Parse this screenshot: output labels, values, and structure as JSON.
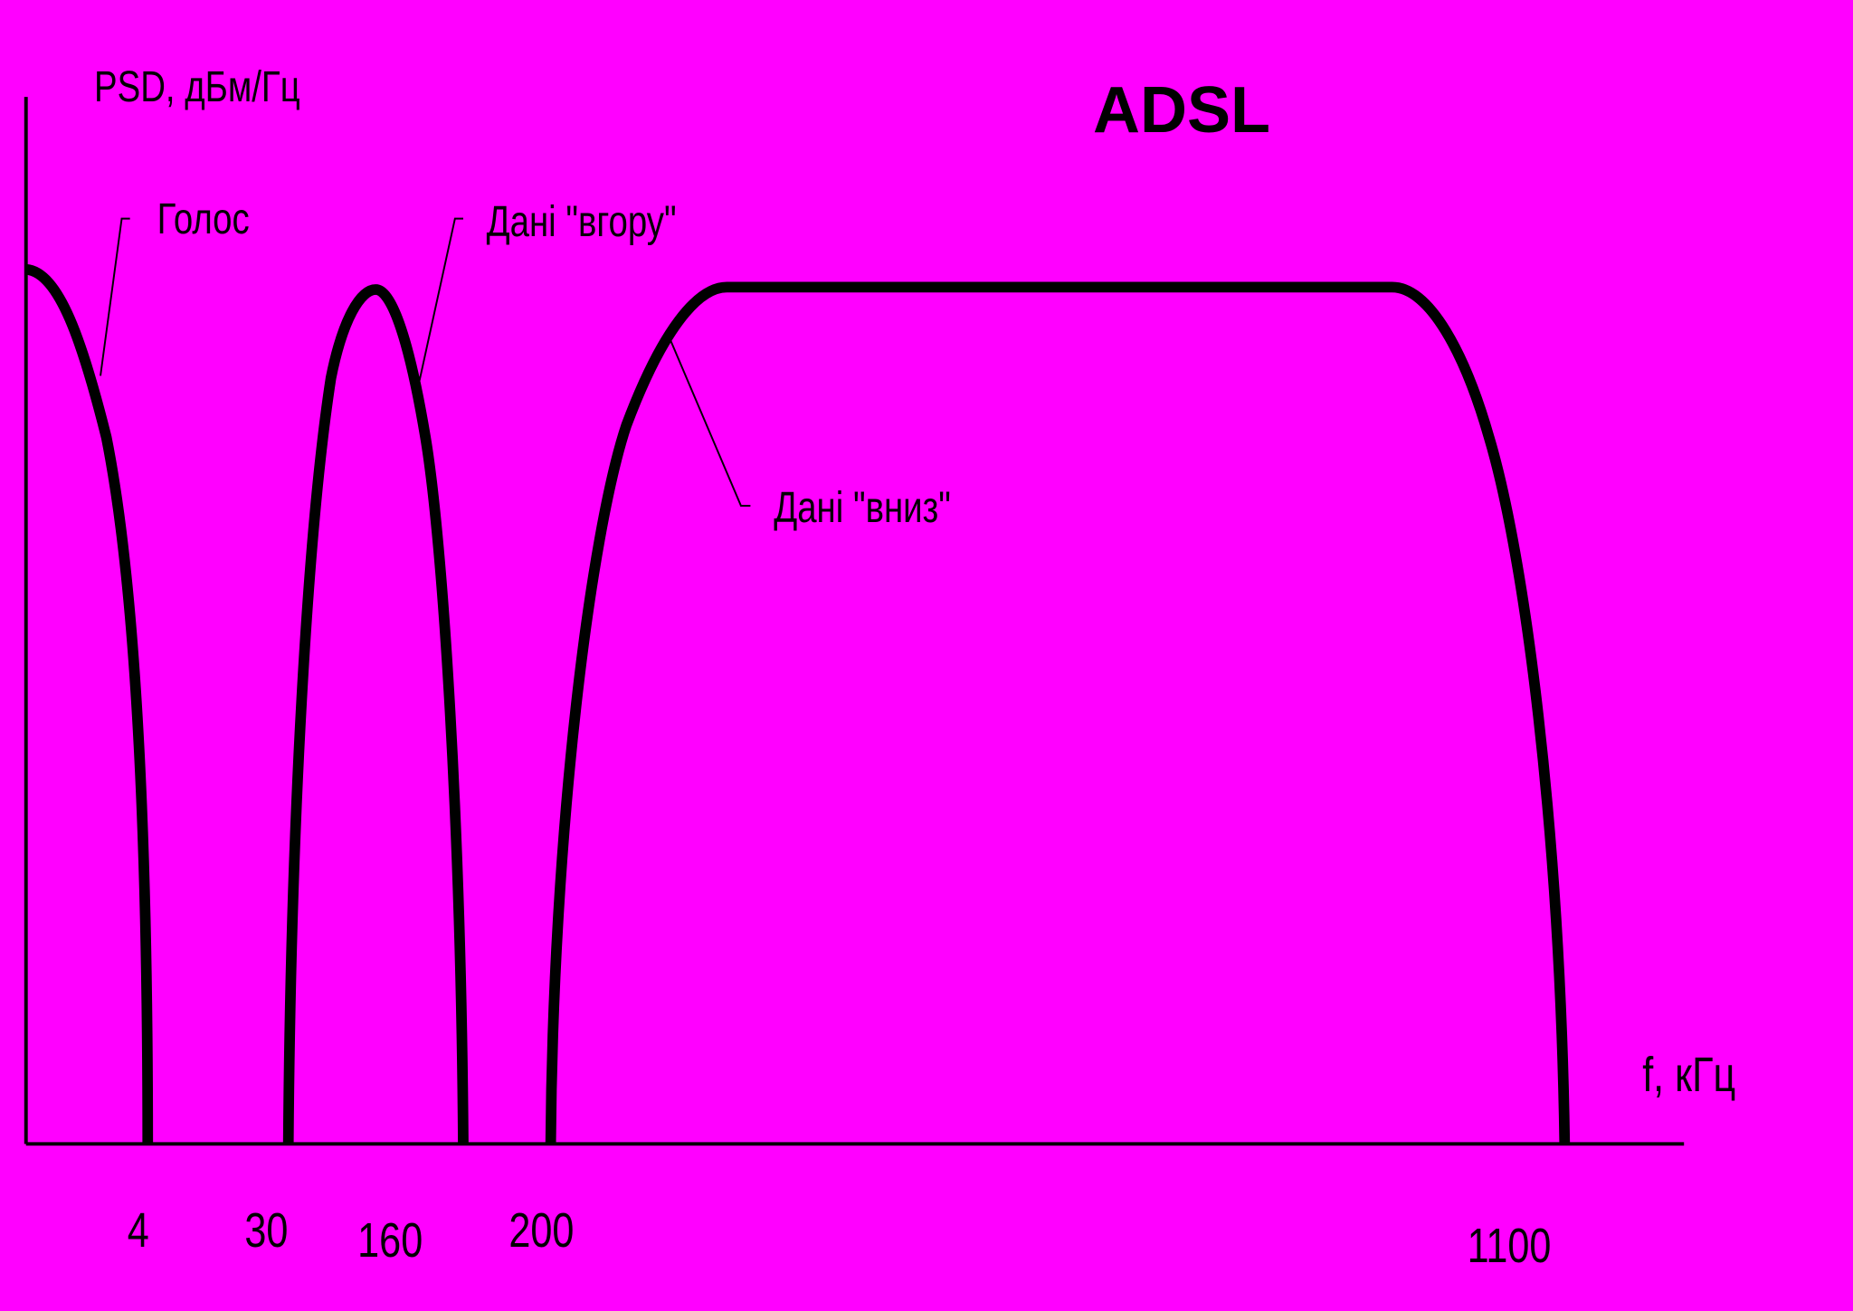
{
  "title": "ADSL",
  "axes": {
    "y_label": "PSD, дБм/Гц",
    "x_label": "f, кГц"
  },
  "x_tick_labels": [
    "4",
    "30",
    "160",
    "200",
    "1100"
  ],
  "bands": [
    {
      "label": "Голос"
    },
    {
      "label": "Дані \"вгору\""
    },
    {
      "label": "Дані \"вниз\""
    }
  ]
}
